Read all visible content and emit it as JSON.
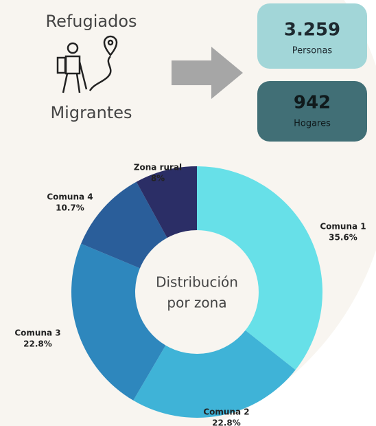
{
  "header": {
    "top": "Refugiados",
    "bottom": "Migrantes"
  },
  "stats": [
    {
      "value": "3.259",
      "label": "Personas"
    },
    {
      "value": "942",
      "label": "Hogares"
    }
  ],
  "chart_data": {
    "type": "pie",
    "donut": true,
    "center_label": [
      "Distribución",
      "por zona"
    ],
    "categories": [
      "Comuna 1",
      "Comuna 2",
      "Comuna 3",
      "Comuna 4",
      "Zona rural"
    ],
    "values": [
      35.6,
      22.8,
      22.8,
      10.7,
      8
    ],
    "value_labels": [
      "35.6%",
      "22.8%",
      "22.8%",
      "10.7%",
      "8%"
    ],
    "colors": [
      "#67e0e8",
      "#3fb3d7",
      "#2e87bd",
      "#2a5e9a",
      "#2b2e66"
    ]
  }
}
